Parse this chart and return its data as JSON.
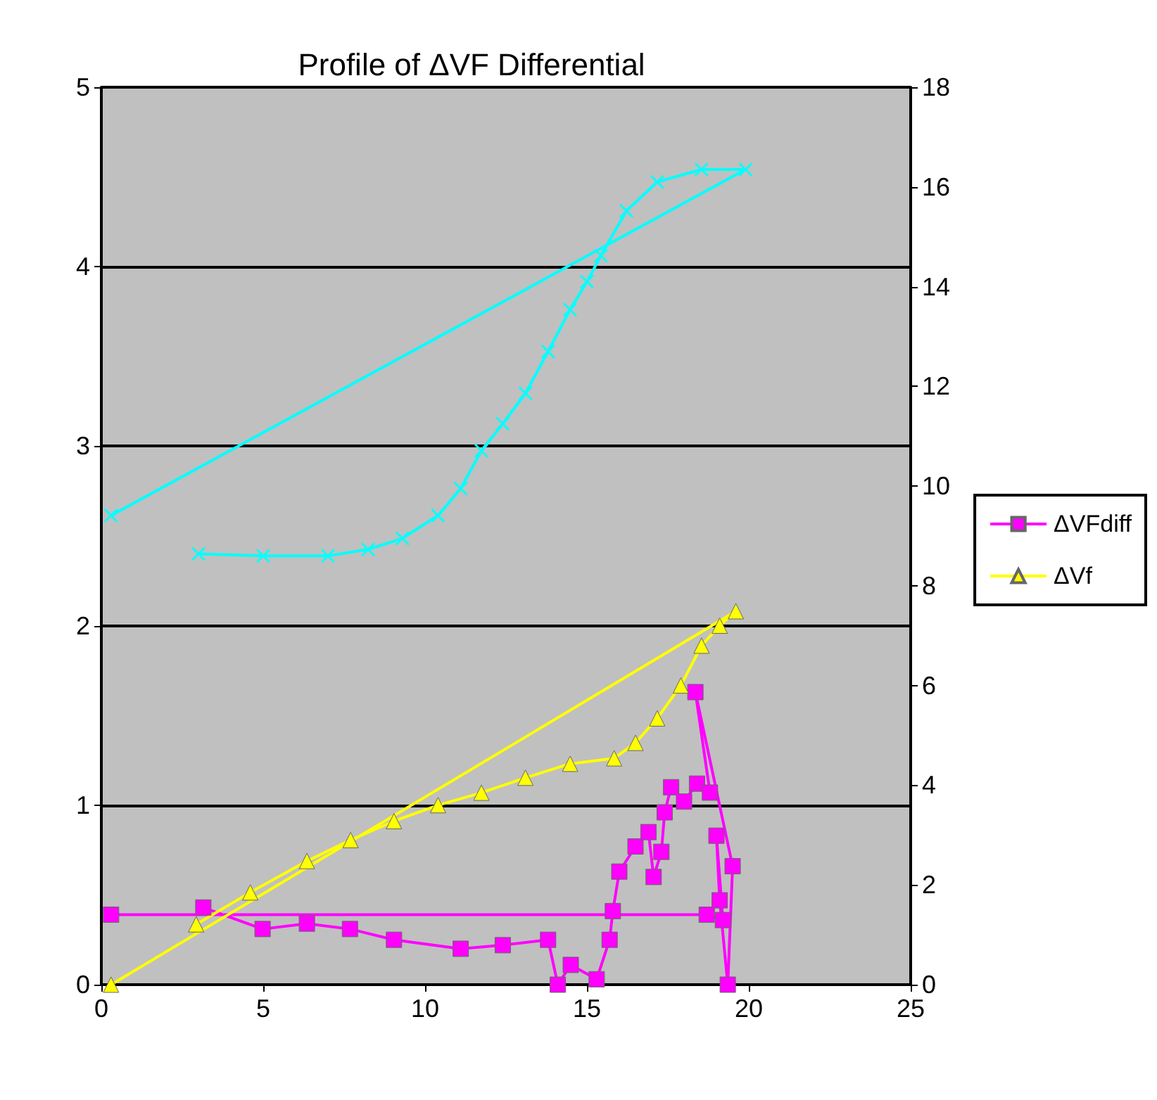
{
  "chart_data": {
    "type": "line",
    "title": "Profile of ΔVF Differential",
    "xlim": [
      0,
      25
    ],
    "xticks": [
      0,
      5,
      10,
      15,
      20,
      25
    ],
    "ylim": [
      0,
      5
    ],
    "yticks": [
      0,
      1,
      2,
      3,
      4,
      5
    ],
    "y2lim": [
      0,
      18
    ],
    "y2ticks": [
      0,
      2,
      4,
      6,
      8,
      10,
      12,
      14,
      16,
      18
    ],
    "grid": "y",
    "legend": "right",
    "series": [
      {
        "name": "ΔVFdiff",
        "color": "#ff00ff",
        "marker": "square",
        "x": [
          3.15,
          4.98,
          6.35,
          7.68,
          9.04,
          11.1,
          12.4,
          13.8,
          14.1,
          14.5,
          15.3,
          15.7,
          15.8,
          16.0,
          16.5,
          16.9,
          17.06,
          17.3,
          17.4,
          17.6,
          18.0,
          18.4,
          18.8,
          18.35,
          19.5,
          19.35,
          19.1,
          19.0,
          19.2,
          18.7,
          0.3
        ],
        "values": [
          0.43,
          0.31,
          0.34,
          0.31,
          0.25,
          0.2,
          0.22,
          0.25,
          0.0,
          0.11,
          0.03,
          0.25,
          0.41,
          0.63,
          0.77,
          0.85,
          0.6,
          0.74,
          0.96,
          1.1,
          1.02,
          1.12,
          1.07,
          1.63,
          0.66,
          0.0,
          0.47,
          0.83,
          0.36,
          0.39,
          0.39
        ]
      },
      {
        "name": "ΔVf",
        "color": "#ffff00",
        "marker": "triangle",
        "axis": "y2",
        "x": [
          2.93,
          4.6,
          6.35,
          7.7,
          9.04,
          10.4,
          11.74,
          13.1,
          14.48,
          15.84,
          16.5,
          17.17,
          17.9,
          18.54,
          19.1,
          19.6,
          0.3
        ],
        "values": [
          1.21,
          1.85,
          2.48,
          2.9,
          3.28,
          3.6,
          3.85,
          4.15,
          4.43,
          4.54,
          4.85,
          5.34,
          6.0,
          6.8,
          7.2,
          7.49,
          0.0
        ]
      },
      {
        "color": "#00ffff",
        "marker": "cross",
        "axis": "y2",
        "x": [
          3.0,
          5.0,
          7.0,
          8.24,
          9.3,
          10.4,
          11.1,
          11.74,
          12.4,
          13.1,
          13.8,
          14.48,
          15.0,
          15.43,
          16.22,
          17.17,
          18.54,
          19.9,
          0.3
        ],
        "values": [
          8.64,
          8.6,
          8.6,
          8.73,
          8.95,
          9.41,
          9.95,
          10.71,
          11.25,
          11.86,
          12.7,
          13.54,
          14.1,
          14.62,
          15.52,
          16.1,
          16.35,
          16.35,
          9.41
        ]
      }
    ]
  }
}
